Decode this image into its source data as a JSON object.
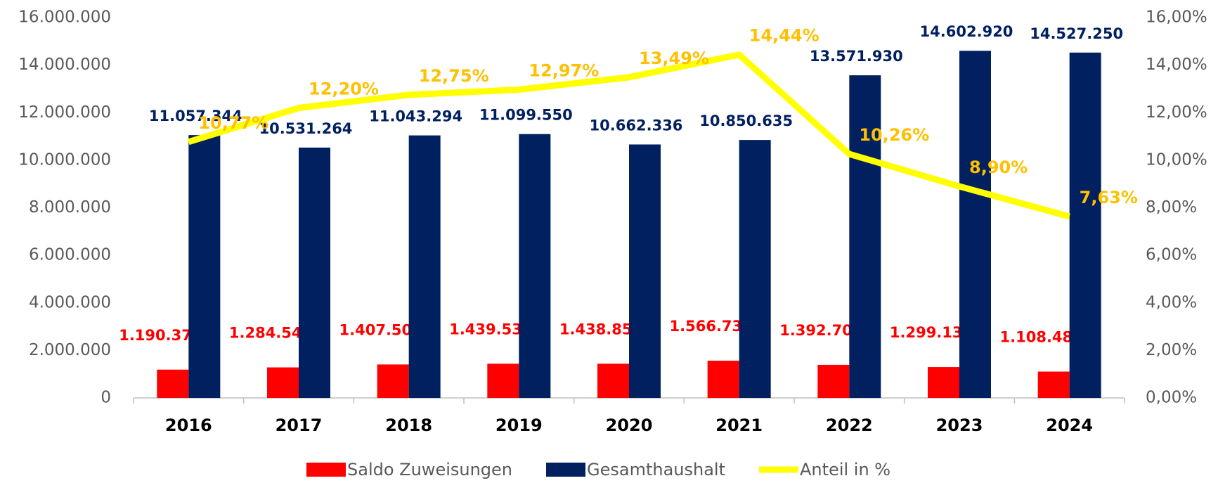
{
  "chart_data": {
    "type": "bar_line",
    "categories": [
      "2016",
      "2017",
      "2018",
      "2019",
      "2020",
      "2021",
      "2022",
      "2023",
      "2024"
    ],
    "series": [
      {
        "name": "Saldo Zuweisungen",
        "color": "#ff0000",
        "label_color": "#ff0000",
        "values": [
          1190378,
          1284540,
          1407500,
          1439534,
          1438856,
          1566730,
          1392707,
          1299130,
          1108480
        ],
        "value_labels": [
          "1.190.378",
          "1.284.540",
          "1.407.500",
          "1.439.534",
          "1.438.856",
          "1.566.730",
          "1.392.707",
          "1.299.130",
          "1.108.480"
        ]
      },
      {
        "name": "Gesamthaushalt",
        "color": "#002060",
        "label_color": "#002060",
        "values": [
          11057344,
          10531264,
          11043294,
          11099550,
          10662336,
          10850635,
          13571930,
          14602920,
          14527250
        ],
        "value_labels": [
          "11.057.344",
          "10.531.264",
          "11.043.294",
          "11.099.550",
          "10.662.336",
          "10.850.635",
          "13.571.930",
          "14.602.920",
          "14.527.250"
        ]
      },
      {
        "name": "Anteil in %",
        "color": "#ffff00",
        "label_color": "#ffc000",
        "axis": "y2",
        "values": [
          10.77,
          12.2,
          12.75,
          12.97,
          13.49,
          14.44,
          10.26,
          8.9,
          7.63
        ],
        "value_labels": [
          "10,77%",
          "12,20%",
          "12,75%",
          "12,97%",
          "13,49%",
          "14,44%",
          "10,26%",
          "8,90%",
          "7,63%"
        ]
      }
    ],
    "ylim": [
      0,
      16000000
    ],
    "yticks": [
      0,
      {
        "value": 2000000,
        "label": "2.000.000"
      },
      {
        "value": 4000000,
        "label": "4.000.000"
      },
      {
        "value": 6000000,
        "label": "6.000.000"
      },
      {
        "value": 8000000,
        "label": "8.000.000"
      },
      {
        "value": 10000000,
        "label": "10.000.000"
      },
      {
        "value": 12000000,
        "label": "12.000.000"
      },
      {
        "value": 14000000,
        "label": "14.000.000"
      },
      {
        "value": 16000000,
        "label": "16.000.000"
      }
    ],
    "y2lim": [
      0,
      16
    ],
    "y2ticks": [
      {
        "value": 0,
        "label": "0,00%"
      },
      {
        "value": 2,
        "label": "2,00%"
      },
      {
        "value": 4,
        "label": "4,00%"
      },
      {
        "value": 6,
        "label": "6,00%"
      },
      {
        "value": 8,
        "label": "8,00%"
      },
      {
        "value": 10,
        "label": "10,00%"
      },
      {
        "value": 12,
        "label": "12,00%"
      },
      {
        "value": 14,
        "label": "14,00%"
      },
      {
        "value": 16,
        "label": "16,00%"
      }
    ],
    "legend": "bottom"
  }
}
